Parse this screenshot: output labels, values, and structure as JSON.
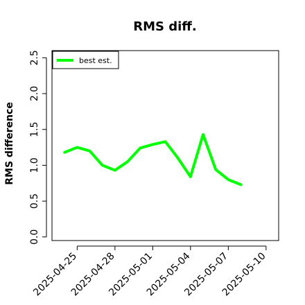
{
  "chart_data": {
    "type": "line",
    "title": "RMS diff.",
    "xlabel": "",
    "ylabel": "RMS difference",
    "x": [
      "2025-04-24",
      "2025-04-25",
      "2025-04-26",
      "2025-04-27",
      "2025-04-28",
      "2025-04-29",
      "2025-04-30",
      "2025-05-01",
      "2025-05-02",
      "2025-05-03",
      "2025-05-04",
      "2025-05-05",
      "2025-05-06",
      "2025-05-07",
      "2025-05-08"
    ],
    "series": [
      {
        "name": "best est.",
        "color": "#00ff00",
        "values": [
          1.18,
          1.25,
          1.2,
          1.0,
          0.93,
          1.05,
          1.24,
          1.29,
          1.33,
          1.1,
          0.84,
          1.43,
          0.94,
          0.8,
          0.73
        ]
      }
    ],
    "xlim": [
      "2025-04-23",
      "2025-05-11"
    ],
    "ylim": [
      -0.05,
      2.6
    ],
    "x_ticks": [
      "2025-04-25",
      "2025-04-28",
      "2025-05-01",
      "2025-05-04",
      "2025-05-07",
      "2025-05-10"
    ],
    "y_ticks": [
      0.0,
      0.5,
      1.0,
      1.5,
      2.0,
      2.5
    ],
    "y_tick_labels": [
      "0.0",
      "0.5",
      "1.0",
      "1.5",
      "2.0",
      "2.5"
    ],
    "grid": false,
    "legend_position": "top-left"
  }
}
